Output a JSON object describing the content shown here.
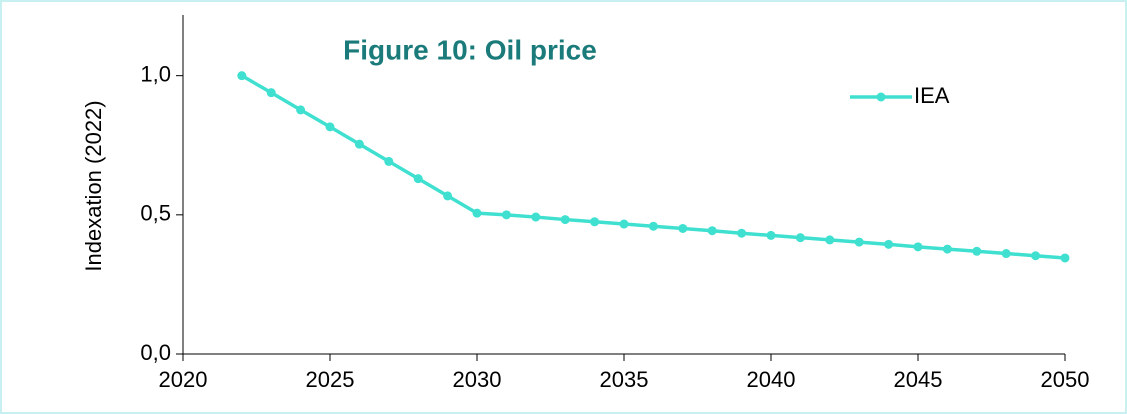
{
  "chart_data": {
    "type": "line",
    "title": "Figure 10: Oil price",
    "ylabel": "Indexation (2022)",
    "x": [
      2022,
      2023,
      2024,
      2025,
      2026,
      2027,
      2028,
      2029,
      2030,
      2031,
      2032,
      2033,
      2034,
      2035,
      2036,
      2037,
      2038,
      2039,
      2040,
      2041,
      2042,
      2043,
      2044,
      2045,
      2046,
      2047,
      2048,
      2049,
      2050
    ],
    "series": [
      {
        "name": "IEA",
        "color": "#40e0d0",
        "values": [
          1.0,
          0.939,
          0.877,
          0.816,
          0.754,
          0.692,
          0.63,
          0.568,
          0.506,
          0.5,
          0.492,
          0.483,
          0.475,
          0.467,
          0.459,
          0.451,
          0.443,
          0.434,
          0.426,
          0.418,
          0.41,
          0.402,
          0.394,
          0.385,
          0.377,
          0.369,
          0.361,
          0.353,
          0.345
        ]
      }
    ],
    "xlim": [
      2020,
      2050
    ],
    "xticks": [
      2020,
      2025,
      2030,
      2035,
      2040,
      2045,
      2050
    ],
    "ylim": [
      0,
      1.2
    ],
    "yticks": [
      {
        "value": 0,
        "label": "0,0"
      },
      {
        "value": 0.5,
        "label": "0,5"
      },
      {
        "value": 1.0,
        "label": "1,0"
      }
    ],
    "grid": false,
    "legend": "upper right"
  }
}
